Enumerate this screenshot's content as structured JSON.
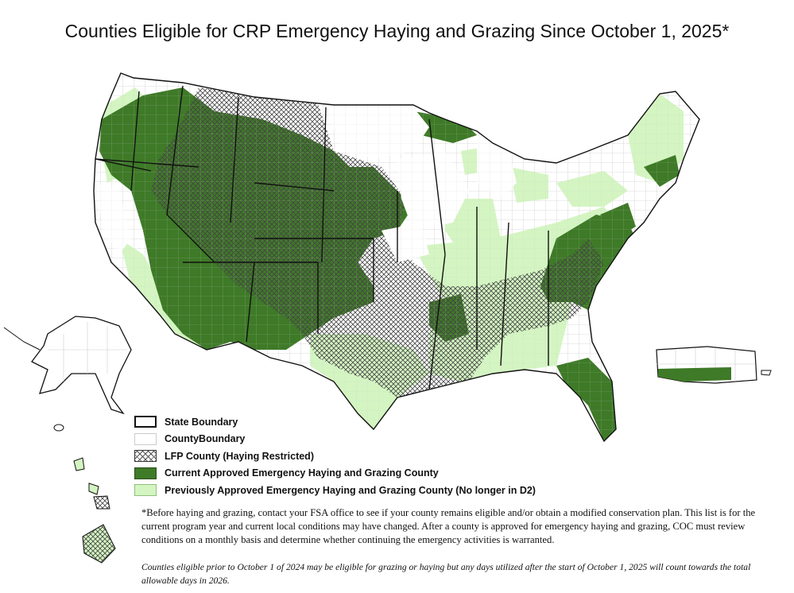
{
  "title": "Counties Eligible for CRP Emergency Haying and Grazing Since October 1, 2025*",
  "colors": {
    "current": "#3e7a27",
    "previous": "#d4f5c2",
    "state_boundary": "#111111",
    "county_boundary": "#bdbdbd",
    "lfp_hatch": "#555555"
  },
  "legend": {
    "state_boundary": "State Boundary",
    "county_boundary": "CountyBoundary",
    "lfp": "LFP County (Haying Restricted)",
    "current": "Current Approved Emergency Haying and Grazing County",
    "previous": "Previously Approved Emergency Haying and Grazing County (No longer in D2)"
  },
  "footnote": "*Before haying and grazing, contact your FSA office to see if your county remains eligible and/or obtain a modified conservation plan. This list is for the current program year and current local conditions may have changed. After a county is approved for emergency haying and grazing, COC must review conditions on a monthly basis and determine whether continuing the emergency activities is warranted.",
  "footnote_italic": "Counties eligible prior to October 1 of 2024 may be eligible for grazing or haying but any days utilized after the start of October 1, 2025 will count towards the total allowable days in 2026."
}
